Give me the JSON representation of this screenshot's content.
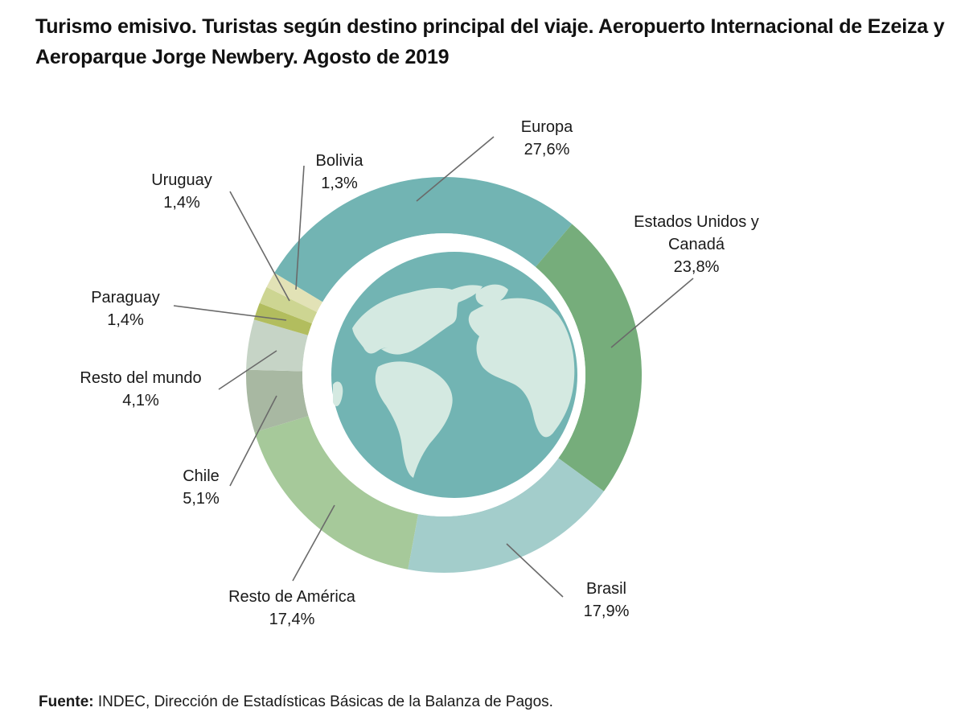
{
  "title_line1": "Turismo emisivo. Turistas según destino principal del viaje. Aeropuerto Internacional de Ezeiza y",
  "title_line2": "Aeroparque Jorge Newbery. Agosto de 2019",
  "source_label": "Fuente:",
  "source_text": "INDEC, Dirección de Estadísticas Básicas de la Balanza de Pagos.",
  "chart_data": {
    "type": "pie",
    "variant": "donut",
    "legend": "none (direct labels with leader lines)",
    "slices": [
      {
        "label_lines": [
          "Europa"
        ],
        "value_label": "27,6%",
        "value": 27.6,
        "color": "#72b4b3"
      },
      {
        "label_lines": [
          "Estados Unidos y",
          "Canadá"
        ],
        "value_label": "23,8%",
        "value": 23.8,
        "color": "#76ad7b"
      },
      {
        "label_lines": [
          "Brasil"
        ],
        "value_label": "17,9%",
        "value": 17.9,
        "color": "#a3cdcb"
      },
      {
        "label_lines": [
          "Resto de América"
        ],
        "value_label": "17,4%",
        "value": 17.4,
        "color": "#a6c99a"
      },
      {
        "label_lines": [
          "Chile"
        ],
        "value_label": "5,1%",
        "value": 5.1,
        "color": "#a8b8a2"
      },
      {
        "label_lines": [
          "Resto del mundo"
        ],
        "value_label": "4,1%",
        "value": 4.1,
        "color": "#c6d4c6"
      },
      {
        "label_lines": [
          "Paraguay"
        ],
        "value_label": "1,4%",
        "value": 1.4,
        "color": "#b2bd5e"
      },
      {
        "label_lines": [
          "Uruguay"
        ],
        "value_label": "1,4%",
        "value": 1.4,
        "color": "#cdd592"
      },
      {
        "label_lines": [
          "Bolivia"
        ],
        "value_label": "1,3%",
        "value": 1.3,
        "color": "#e2e2b6"
      }
    ],
    "center_image": "globe-icon",
    "colors": {
      "ocean": "#72b4b3",
      "land": "#d4e9e1",
      "ring_gap": "#ffffff"
    }
  }
}
